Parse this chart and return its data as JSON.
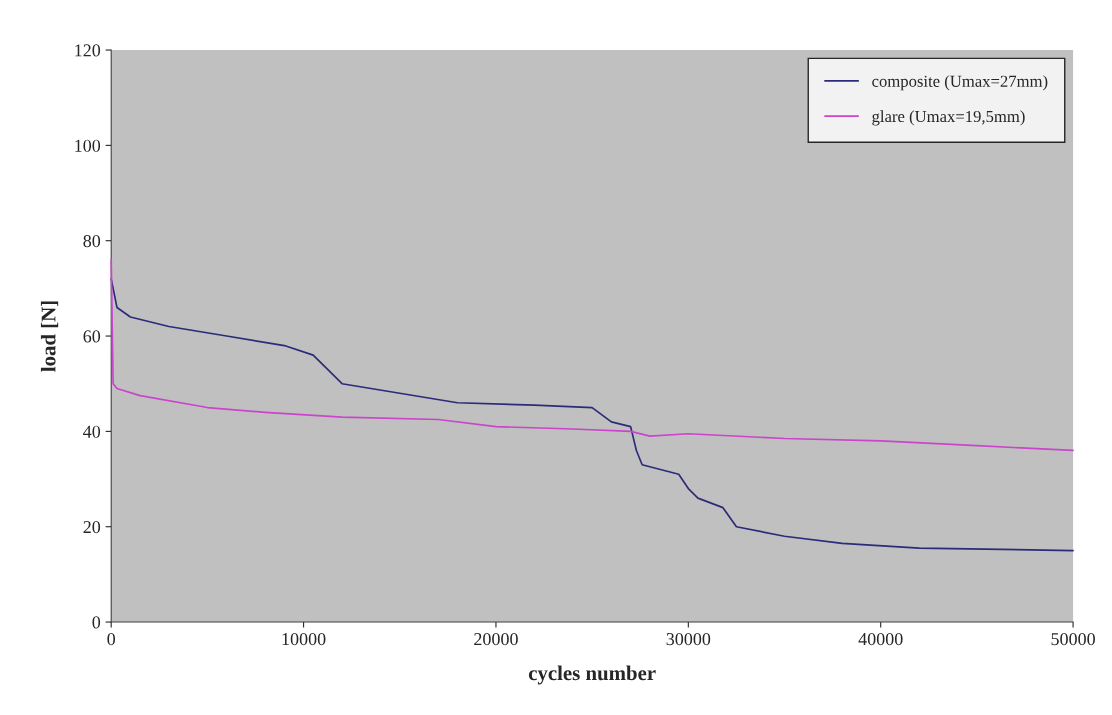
{
  "chart_data": {
    "type": "line",
    "xlabel": "cycles number",
    "ylabel": "load [N]",
    "xlim": [
      0,
      50000
    ],
    "xticks": [
      0,
      10000,
      20000,
      30000,
      40000,
      50000
    ],
    "ylim": [
      0,
      120
    ],
    "yticks": [
      0,
      20,
      40,
      60,
      80,
      100,
      120
    ],
    "grid": false,
    "legend": "top right",
    "marker": "none",
    "line_style": "solid",
    "series": [
      {
        "name": "composite (Umax=27mm)",
        "color": "#2b2b7a",
        "x": [
          0,
          300,
          1000,
          3000,
          6000,
          9000,
          10500,
          11500,
          12000,
          15000,
          18000,
          22000,
          25000,
          26000,
          27000,
          27300,
          27600,
          29500,
          30000,
          30500,
          31800,
          32500,
          35000,
          38000,
          42000,
          50000
        ],
        "values": [
          72,
          66,
          64,
          62,
          60,
          58,
          56,
          52,
          50,
          48,
          46,
          45.5,
          45,
          42,
          41,
          36,
          33,
          31,
          28,
          26,
          24,
          20,
          18,
          16.5,
          15.5,
          15
        ]
      },
      {
        "name": "glare (Umax=19,5mm)",
        "color": "#cc44cc",
        "x": [
          0,
          100,
          300,
          1500,
          5000,
          8000,
          12000,
          17000,
          20000,
          24000,
          27000,
          28000,
          30000,
          35000,
          40000,
          45000,
          50000
        ],
        "values": [
          76,
          50,
          49,
          47.5,
          45,
          44,
          43,
          42.5,
          41,
          40.5,
          40,
          39,
          39.5,
          38.5,
          38,
          37,
          36
        ]
      }
    ]
  }
}
